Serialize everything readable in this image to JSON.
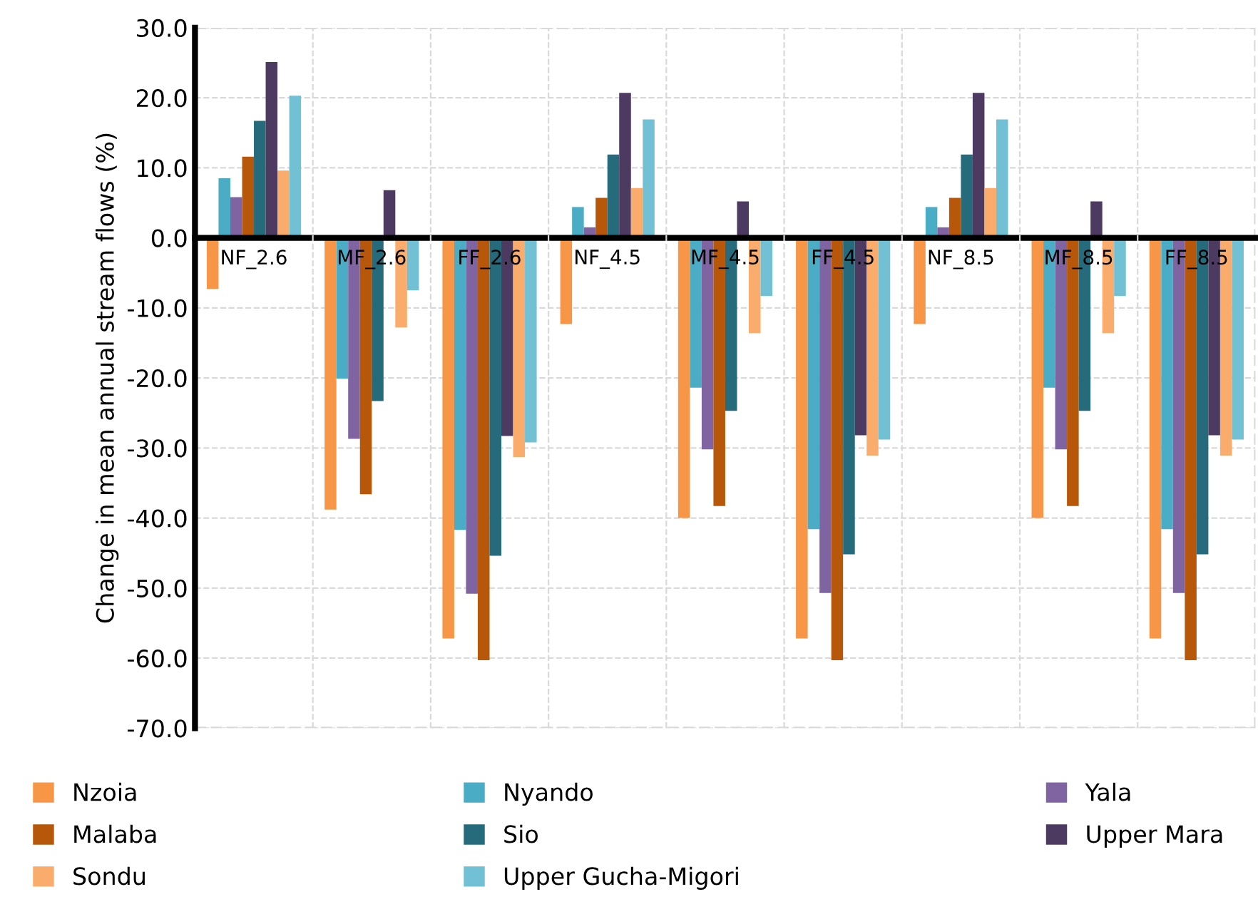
{
  "chart_data": {
    "type": "bar",
    "ylabel": "Change in mean annual stream flows (%)",
    "categories": [
      "NF_2.6",
      "MF_2.6",
      "FF_2.6",
      "NF_4.5",
      "MF_4.5",
      "FF_4.5",
      "NF_8.5",
      "MF_8.5",
      "FF_8.5"
    ],
    "series": [
      {
        "name": "Nzoia",
        "color": "#f79646",
        "values": [
          -7.3,
          -38.8,
          -57.2,
          -12.3,
          -40.0,
          -57.2,
          -12.3,
          -40.0,
          -57.2
        ]
      },
      {
        "name": "Nyando",
        "color": "#4bacc6",
        "values": [
          8.5,
          -20.1,
          -41.7,
          4.4,
          -21.4,
          -41.6,
          4.4,
          -21.4,
          -41.6
        ]
      },
      {
        "name": "Yala",
        "color": "#8064a2",
        "values": [
          5.8,
          -28.7,
          -50.8,
          1.5,
          -30.2,
          -50.7,
          1.5,
          -30.2,
          -50.7
        ]
      },
      {
        "name": "Malaba",
        "color": "#b7570a",
        "values": [
          11.6,
          -36.6,
          -60.3,
          5.7,
          -38.3,
          -60.3,
          5.7,
          -38.3,
          -60.3
        ]
      },
      {
        "name": "Sio",
        "color": "#256b7b",
        "values": [
          16.7,
          -23.3,
          -45.4,
          11.9,
          -24.7,
          -45.2,
          11.9,
          -24.7,
          -45.2
        ]
      },
      {
        "name": "Upper Mara",
        "color": "#4c3a60",
        "values": [
          25.1,
          6.8,
          -28.3,
          20.7,
          5.2,
          -28.2,
          20.7,
          5.2,
          -28.2
        ]
      },
      {
        "name": "Sondu",
        "color": "#f9ac6b",
        "values": [
          9.6,
          -12.8,
          -31.3,
          7.1,
          -13.6,
          -31.1,
          7.1,
          -13.6,
          -31.1
        ]
      },
      {
        "name": "Upper Gucha-Migori",
        "color": "#72c0d3",
        "values": [
          20.3,
          -7.5,
          -29.2,
          16.9,
          -8.3,
          -28.8,
          16.9,
          -8.3,
          -28.8
        ]
      }
    ],
    "ylim": [
      -70,
      30
    ],
    "yticks": [
      {
        "value": -70,
        "label": "-70.0"
      },
      {
        "value": -60,
        "label": "-60.0"
      },
      {
        "value": -50,
        "label": "-50.0"
      },
      {
        "value": -40,
        "label": "-40.0"
      },
      {
        "value": -30,
        "label": "-30.0"
      },
      {
        "value": -20,
        "label": "-20.0"
      },
      {
        "value": -10,
        "label": "-10.0"
      },
      {
        "value": 0,
        "label": "0.0"
      },
      {
        "value": 10,
        "label": "10.0"
      },
      {
        "value": 20,
        "label": "20.0"
      },
      {
        "value": 30,
        "label": "30.0"
      }
    ],
    "grid": true,
    "legend": "bottom"
  }
}
